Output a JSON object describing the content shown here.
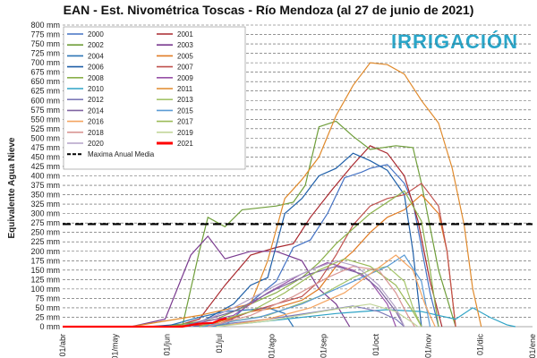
{
  "chart_data": {
    "type": "line",
    "title": "EAN - Est. Nivométrica Toscas - Río Mendoza (al 27 de junio de 2021)",
    "ylabel": "Equivalente Agua Nieve",
    "y_ticks": [
      "0 mm",
      "25 mm",
      "50 mm",
      "75 mm",
      "100 mm",
      "125 mm",
      "150 mm",
      "175 mm",
      "200 mm",
      "225 mm",
      "250 mm",
      "275 mm",
      "300 mm",
      "325 mm",
      "350 mm",
      "375 mm",
      "400 mm",
      "425 mm",
      "450 mm",
      "475 mm",
      "500 mm",
      "525 mm",
      "550 mm",
      "575 mm",
      "600 mm",
      "625 mm",
      "650 mm",
      "675 mm",
      "700 mm",
      "725 mm",
      "750 mm",
      "775 mm",
      "800 mm"
    ],
    "x_ticks": [
      "01/abr",
      "01/may",
      "01/jun",
      "01/jul",
      "01/ago",
      "01/sep",
      "01/oct",
      "01/nov",
      "01/dic",
      "01/ene"
    ],
    "ylim": [
      0,
      800
    ],
    "logo_text": "IRRIGACIÓN",
    "grid": "horizontal dashed",
    "legend_position": "top-left",
    "series": [
      {
        "name": "2000",
        "color": "#4472c4",
        "points": [
          [
            30,
            0
          ],
          [
            95,
            2
          ],
          [
            110,
            65
          ],
          [
            125,
            120
          ],
          [
            135,
            210
          ],
          [
            145,
            230
          ],
          [
            155,
            300
          ],
          [
            165,
            395
          ],
          [
            175,
            410
          ],
          [
            180,
            420
          ],
          [
            190,
            430
          ],
          [
            200,
            380
          ],
          [
            205,
            330
          ],
          [
            215,
            90
          ],
          [
            220,
            0
          ]
        ]
      },
      {
        "name": "2001",
        "color": "#a9282e",
        "points": [
          [
            20,
            0
          ],
          [
            65,
            0
          ],
          [
            80,
            20
          ],
          [
            95,
            110
          ],
          [
            110,
            190
          ],
          [
            125,
            210
          ],
          [
            135,
            220
          ],
          [
            145,
            290
          ],
          [
            158,
            365
          ],
          [
            170,
            430
          ],
          [
            180,
            480
          ],
          [
            190,
            460
          ],
          [
            200,
            400
          ],
          [
            208,
            280
          ],
          [
            215,
            120
          ],
          [
            222,
            0
          ]
        ]
      },
      {
        "name": "2002",
        "color": "#6f9e3a",
        "points": [
          [
            45,
            0
          ],
          [
            70,
            0
          ],
          [
            80,
            200
          ],
          [
            85,
            290
          ],
          [
            95,
            265
          ],
          [
            105,
            310
          ],
          [
            115,
            315
          ],
          [
            125,
            320
          ],
          [
            135,
            330
          ],
          [
            142,
            375
          ],
          [
            150,
            530
          ],
          [
            160,
            545
          ],
          [
            170,
            505
          ],
          [
            180,
            470
          ],
          [
            195,
            480
          ],
          [
            205,
            475
          ],
          [
            210,
            380
          ],
          [
            220,
            150
          ],
          [
            230,
            0
          ]
        ]
      },
      {
        "name": "2003",
        "color": "#7a3b8f",
        "points": [
          [
            40,
            0
          ],
          [
            60,
            20
          ],
          [
            75,
            190
          ],
          [
            85,
            240
          ],
          [
            95,
            180
          ],
          [
            110,
            200
          ],
          [
            125,
            200
          ],
          [
            140,
            175
          ],
          [
            150,
            100
          ],
          [
            160,
            60
          ],
          [
            168,
            0
          ]
        ]
      },
      {
        "name": "2004",
        "color": "#2e75b6",
        "points": [
          [
            60,
            0
          ],
          [
            80,
            25
          ],
          [
            95,
            40
          ],
          [
            110,
            45
          ],
          [
            120,
            50
          ],
          [
            130,
            35
          ],
          [
            135,
            0
          ]
        ]
      },
      {
        "name": "2005",
        "color": "#e07b24",
        "points": [
          [
            60,
            0
          ],
          [
            90,
            10
          ],
          [
            110,
            40
          ],
          [
            125,
            50
          ],
          [
            140,
            70
          ],
          [
            150,
            100
          ],
          [
            160,
            160
          ],
          [
            170,
            200
          ],
          [
            180,
            250
          ],
          [
            190,
            290
          ],
          [
            200,
            310
          ],
          [
            210,
            350
          ],
          [
            220,
            300
          ],
          [
            225,
            200
          ],
          [
            230,
            0
          ]
        ]
      },
      {
        "name": "2006",
        "color": "#1f5fa8",
        "points": [
          [
            50,
            0
          ],
          [
            80,
            10
          ],
          [
            100,
            60
          ],
          [
            110,
            110
          ],
          [
            120,
            130
          ],
          [
            130,
            300
          ],
          [
            140,
            340
          ],
          [
            150,
            400
          ],
          [
            160,
            420
          ],
          [
            170,
            460
          ],
          [
            180,
            440
          ],
          [
            190,
            415
          ],
          [
            200,
            350
          ],
          [
            205,
            200
          ],
          [
            210,
            0
          ]
        ]
      },
      {
        "name": "2007",
        "color": "#c0504d",
        "points": [
          [
            55,
            0
          ],
          [
            90,
            5
          ],
          [
            110,
            40
          ],
          [
            125,
            60
          ],
          [
            140,
            80
          ],
          [
            150,
            120
          ],
          [
            160,
            190
          ],
          [
            170,
            270
          ],
          [
            180,
            320
          ],
          [
            190,
            340
          ],
          [
            200,
            350
          ],
          [
            210,
            380
          ],
          [
            220,
            320
          ],
          [
            225,
            200
          ],
          [
            230,
            0
          ]
        ]
      },
      {
        "name": "2008",
        "color": "#8bb04a",
        "points": [
          [
            60,
            0
          ],
          [
            90,
            20
          ],
          [
            110,
            60
          ],
          [
            125,
            90
          ],
          [
            140,
            130
          ],
          [
            150,
            170
          ],
          [
            160,
            220
          ],
          [
            170,
            260
          ],
          [
            180,
            300
          ],
          [
            190,
            330
          ],
          [
            200,
            360
          ],
          [
            210,
            280
          ],
          [
            215,
            150
          ],
          [
            220,
            0
          ]
        ]
      },
      {
        "name": "2009",
        "color": "#9751a8",
        "points": [
          [
            70,
            0
          ],
          [
            100,
            30
          ],
          [
            120,
            90
          ],
          [
            140,
            140
          ],
          [
            155,
            170
          ],
          [
            170,
            150
          ],
          [
            180,
            120
          ],
          [
            190,
            60
          ],
          [
            195,
            0
          ]
        ]
      },
      {
        "name": "2010",
        "color": "#2ea3c6",
        "points": [
          [
            80,
            0
          ],
          [
            110,
            10
          ],
          [
            130,
            20
          ],
          [
            160,
            35
          ],
          [
            190,
            45
          ],
          [
            210,
            40
          ],
          [
            220,
            30
          ],
          [
            230,
            20
          ],
          [
            240,
            50
          ],
          [
            250,
            25
          ],
          [
            260,
            5
          ],
          [
            265,
            0
          ]
        ]
      },
      {
        "name": "2011",
        "color": "#e08a2c",
        "points": [
          [
            40,
            0
          ],
          [
            80,
            30
          ],
          [
            110,
            60
          ],
          [
            120,
            175
          ],
          [
            130,
            340
          ],
          [
            140,
            390
          ],
          [
            150,
            450
          ],
          [
            160,
            560
          ],
          [
            170,
            640
          ],
          [
            180,
            700
          ],
          [
            190,
            695
          ],
          [
            200,
            670
          ],
          [
            210,
            600
          ],
          [
            220,
            540
          ],
          [
            228,
            420
          ],
          [
            235,
            270
          ],
          [
            240,
            100
          ],
          [
            245,
            0
          ]
        ]
      },
      {
        "name": "2012",
        "color": "#7d7ab8",
        "points": [
          [
            80,
            0
          ],
          [
            120,
            20
          ],
          [
            150,
            40
          ],
          [
            170,
            55
          ],
          [
            185,
            40
          ],
          [
            195,
            20
          ],
          [
            200,
            0
          ]
        ]
      },
      {
        "name": "2013",
        "color": "#a4c46a",
        "points": [
          [
            80,
            0
          ],
          [
            120,
            30
          ],
          [
            150,
            80
          ],
          [
            170,
            130
          ],
          [
            180,
            150
          ],
          [
            190,
            160
          ],
          [
            200,
            120
          ],
          [
            205,
            50
          ],
          [
            210,
            0
          ]
        ]
      },
      {
        "name": "2014",
        "color": "#8064a2",
        "points": [
          [
            70,
            0
          ],
          [
            100,
            40
          ],
          [
            125,
            100
          ],
          [
            145,
            140
          ],
          [
            160,
            160
          ],
          [
            175,
            140
          ],
          [
            185,
            100
          ],
          [
            195,
            40
          ],
          [
            200,
            0
          ]
        ]
      },
      {
        "name": "2015",
        "color": "#5b9bd5",
        "points": [
          [
            80,
            0
          ],
          [
            115,
            25
          ],
          [
            140,
            60
          ],
          [
            160,
            100
          ],
          [
            175,
            130
          ],
          [
            190,
            160
          ],
          [
            200,
            190
          ],
          [
            210,
            120
          ],
          [
            215,
            0
          ]
        ]
      },
      {
        "name": "2016",
        "color": "#f4a460",
        "points": [
          [
            90,
            0
          ],
          [
            120,
            20
          ],
          [
            145,
            50
          ],
          [
            165,
            90
          ],
          [
            180,
            140
          ],
          [
            195,
            190
          ],
          [
            205,
            150
          ],
          [
            212,
            60
          ],
          [
            218,
            0
          ]
        ]
      },
      {
        "name": "2017",
        "color": "#9bbb59",
        "points": [
          [
            80,
            0
          ],
          [
            110,
            40
          ],
          [
            130,
            90
          ],
          [
            150,
            150
          ],
          [
            165,
            180
          ],
          [
            180,
            160
          ],
          [
            195,
            110
          ],
          [
            205,
            40
          ],
          [
            210,
            0
          ]
        ]
      },
      {
        "name": "2018",
        "color": "#d99694",
        "points": [
          [
            85,
            0
          ],
          [
            110,
            30
          ],
          [
            135,
            80
          ],
          [
            155,
            130
          ],
          [
            170,
            160
          ],
          [
            185,
            150
          ],
          [
            195,
            90
          ],
          [
            202,
            30
          ],
          [
            206,
            0
          ]
        ]
      },
      {
        "name": "2019",
        "color": "#c3d69b",
        "points": [
          [
            90,
            0
          ],
          [
            120,
            15
          ],
          [
            145,
            35
          ],
          [
            165,
            50
          ],
          [
            180,
            60
          ],
          [
            195,
            40
          ],
          [
            205,
            10
          ],
          [
            208,
            0
          ]
        ]
      },
      {
        "name": "2020",
        "color": "#b3a2c7",
        "points": [
          [
            75,
            0
          ],
          [
            100,
            50
          ],
          [
            125,
            110
          ],
          [
            145,
            150
          ],
          [
            160,
            175
          ],
          [
            172,
            160
          ],
          [
            185,
            110
          ],
          [
            195,
            50
          ],
          [
            200,
            0
          ]
        ]
      },
      {
        "name": "2021",
        "color": "#ff0000",
        "points": [
          [
            0,
            0
          ],
          [
            70,
            0
          ],
          [
            80,
            8
          ],
          [
            88,
            10
          ],
          [
            92,
            18
          ],
          [
            96,
            22
          ]
        ]
      }
    ],
    "reference_lines": [
      {
        "name": "Maxima Anual Media",
        "value": 272,
        "color": "#000000",
        "style": "dashed"
      }
    ]
  }
}
